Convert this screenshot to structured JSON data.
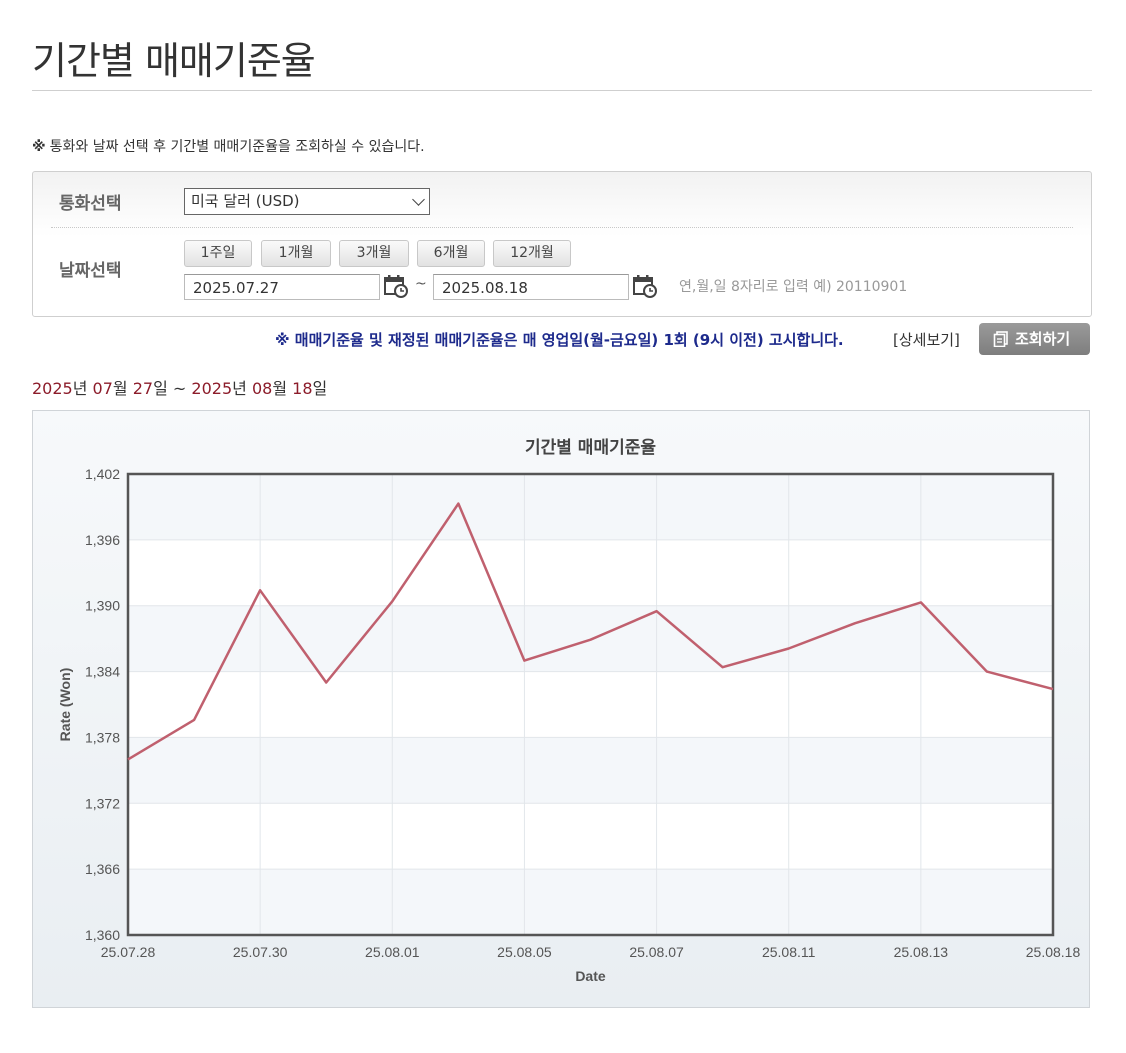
{
  "page": {
    "title": "기간별 매매기준율",
    "notice_mark": "※",
    "notice": "통화와 날짜 선택 후 기간별 매매기준율을 조회하실 수 있습니다."
  },
  "search": {
    "currency_label": "통화선택",
    "currency_value": "미국 달러 (USD)",
    "date_label": "날짜선택",
    "period_buttons": [
      "1주일",
      "1개월",
      "3개월",
      "6개월",
      "12개월"
    ],
    "start_date": "2025.07.27",
    "tilde": "~",
    "end_date": "2025.08.18",
    "date_hint": "연,월,일 8자리로 입력 예) 20110901"
  },
  "info": {
    "notice": "※ 매매기준율 및 재정된 매매기준율은 매 영업일(월-금요일) 1회 (9시 이전) 고시합니다.",
    "detail_link": "[상세보기]",
    "query_button": "조회하기"
  },
  "range": {
    "start_year": "2025",
    "start_month": "07",
    "start_day": "27",
    "end_year": "2025",
    "end_month": "08",
    "end_day": "18",
    "year_unit": "년",
    "month_unit": "월",
    "day_unit": "일",
    "sep": "~"
  },
  "colors": {
    "line": "#c0606e",
    "range_number": "#8c1c2a",
    "notice_blue": "#1d2a8c"
  },
  "chart_data": {
    "type": "line",
    "title": "기간별 매매기준율",
    "xlabel": "Date",
    "ylabel": "Rate (Won)",
    "ylim": [
      1360,
      1402
    ],
    "yticks": [
      "1,360",
      "1,366",
      "1,372",
      "1,378",
      "1,384",
      "1,390",
      "1,396",
      "1,402"
    ],
    "xtick_labels": [
      "25.07.28",
      "25.07.30",
      "25.08.01",
      "25.08.05",
      "25.08.07",
      "25.08.11",
      "25.08.13",
      "25.08.18"
    ],
    "grid": true,
    "series": [
      {
        "dates": [
          "25.07.28",
          "25.07.29",
          "25.07.30",
          "25.07.31",
          "25.08.01",
          "25.08.04",
          "25.08.05",
          "25.08.06",
          "25.08.07",
          "25.08.08",
          "25.08.11",
          "25.08.12",
          "25.08.13",
          "25.08.14",
          "25.08.18"
        ],
        "values": [
          1376.0,
          1379.6,
          1391.4,
          1383.0,
          1390.4,
          1399.3,
          1385.0,
          1386.9,
          1389.5,
          1384.4,
          1386.1,
          1388.4,
          1390.3,
          1384.0,
          1382.4
        ]
      }
    ]
  }
}
